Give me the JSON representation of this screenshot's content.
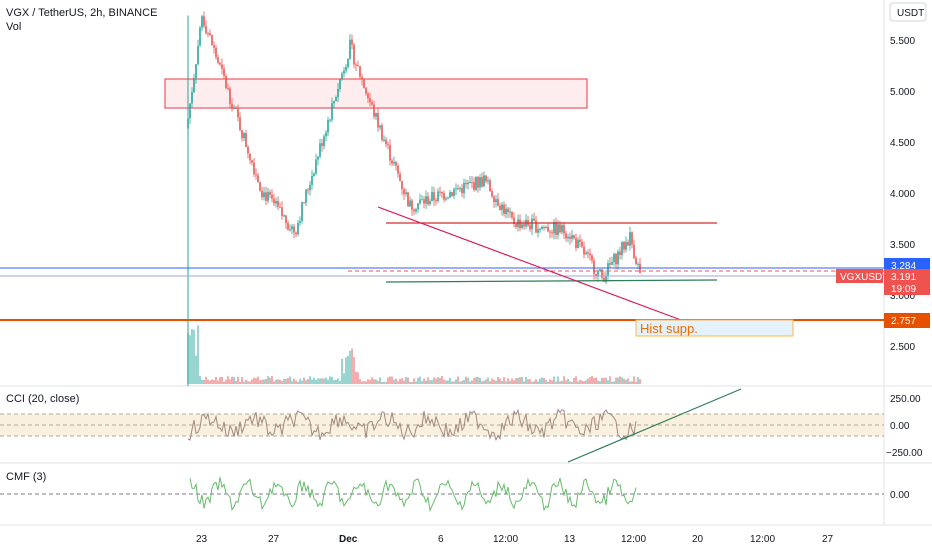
{
  "header": {
    "title": "VGX / TetherUS, 2h, BINANCE",
    "volume_label": "Vol",
    "currency_button": "USDT"
  },
  "colors": {
    "up": "#26a69a",
    "down": "#ef5350",
    "support_line": "#e65100",
    "blue_line": "#2962ff",
    "annotation_box": "#f23645",
    "cci_line": "#a1887f",
    "cmf_line": "#66bb6a",
    "trend_line": "#2e7d5b"
  },
  "price_axis": {
    "ticks": [
      "5.500",
      "5.000",
      "4.500",
      "4.000",
      "3.500",
      "3.000",
      "2.500"
    ],
    "badges": [
      {
        "value": "3.284",
        "color": "#2962ff"
      },
      {
        "value": "3.191",
        "extra": "19:09",
        "color": "#ef5350",
        "symbol": "VGXUSDT"
      },
      {
        "value": "2.757",
        "color": "#e65100"
      }
    ]
  },
  "annotation": {
    "text": "Hist supp."
  },
  "cci_panel": {
    "label": "CCI (20, close)",
    "ticks": [
      "250.00",
      "0.00",
      "−250.00"
    ]
  },
  "cmf_panel": {
    "label": "CMF (3)",
    "ticks": [
      "0.00"
    ]
  },
  "time_axis": {
    "labels": [
      "23",
      "27",
      "Dec",
      "6",
      "12:00",
      "13",
      "12:00",
      "20",
      "12:00",
      "27"
    ]
  },
  "chart_data": {
    "type": "candlestick",
    "title": "VGX / TetherUS, 2h, BINANCE",
    "ylim": [
      2.1,
      5.85
    ],
    "y_ticks": [
      5.5,
      5.0,
      4.5,
      4.0,
      3.5,
      3.0,
      2.5
    ],
    "x_labels": [
      "23",
      "27",
      "Dec",
      "6",
      "12:00",
      "13",
      "12:00",
      "20",
      "12:00",
      "27"
    ],
    "key_points": [
      {
        "label": "23",
        "price": 4.7
      },
      {
        "label": "23",
        "price": 5.7
      },
      {
        "label": "27",
        "price": 4.0
      },
      {
        "label": "27",
        "price": 3.6
      },
      {
        "label": "Dec",
        "price": 5.4
      },
      {
        "label": "Dec",
        "price": 4.8
      },
      {
        "label": "6",
        "price": 3.85
      },
      {
        "label": "12:00",
        "price": 4.1
      },
      {
        "label": "12:00",
        "price": 3.7
      },
      {
        "label": "13",
        "price": 3.6
      },
      {
        "label": "13",
        "price": 3.15
      },
      {
        "label": "12:00",
        "price": 3.55
      },
      {
        "label": "12:00",
        "price": 3.19
      }
    ],
    "levels": {
      "blue": 3.284,
      "last": 3.191,
      "hist_support": 2.757,
      "resistance": 3.71,
      "support": 3.14
    },
    "zone": {
      "low": 4.82,
      "high": 5.12
    },
    "cci": {
      "upper": 100,
      "lower": -100,
      "ticks": [
        250,
        0,
        -250
      ]
    },
    "cmf": {
      "ticks": [
        0
      ]
    }
  }
}
